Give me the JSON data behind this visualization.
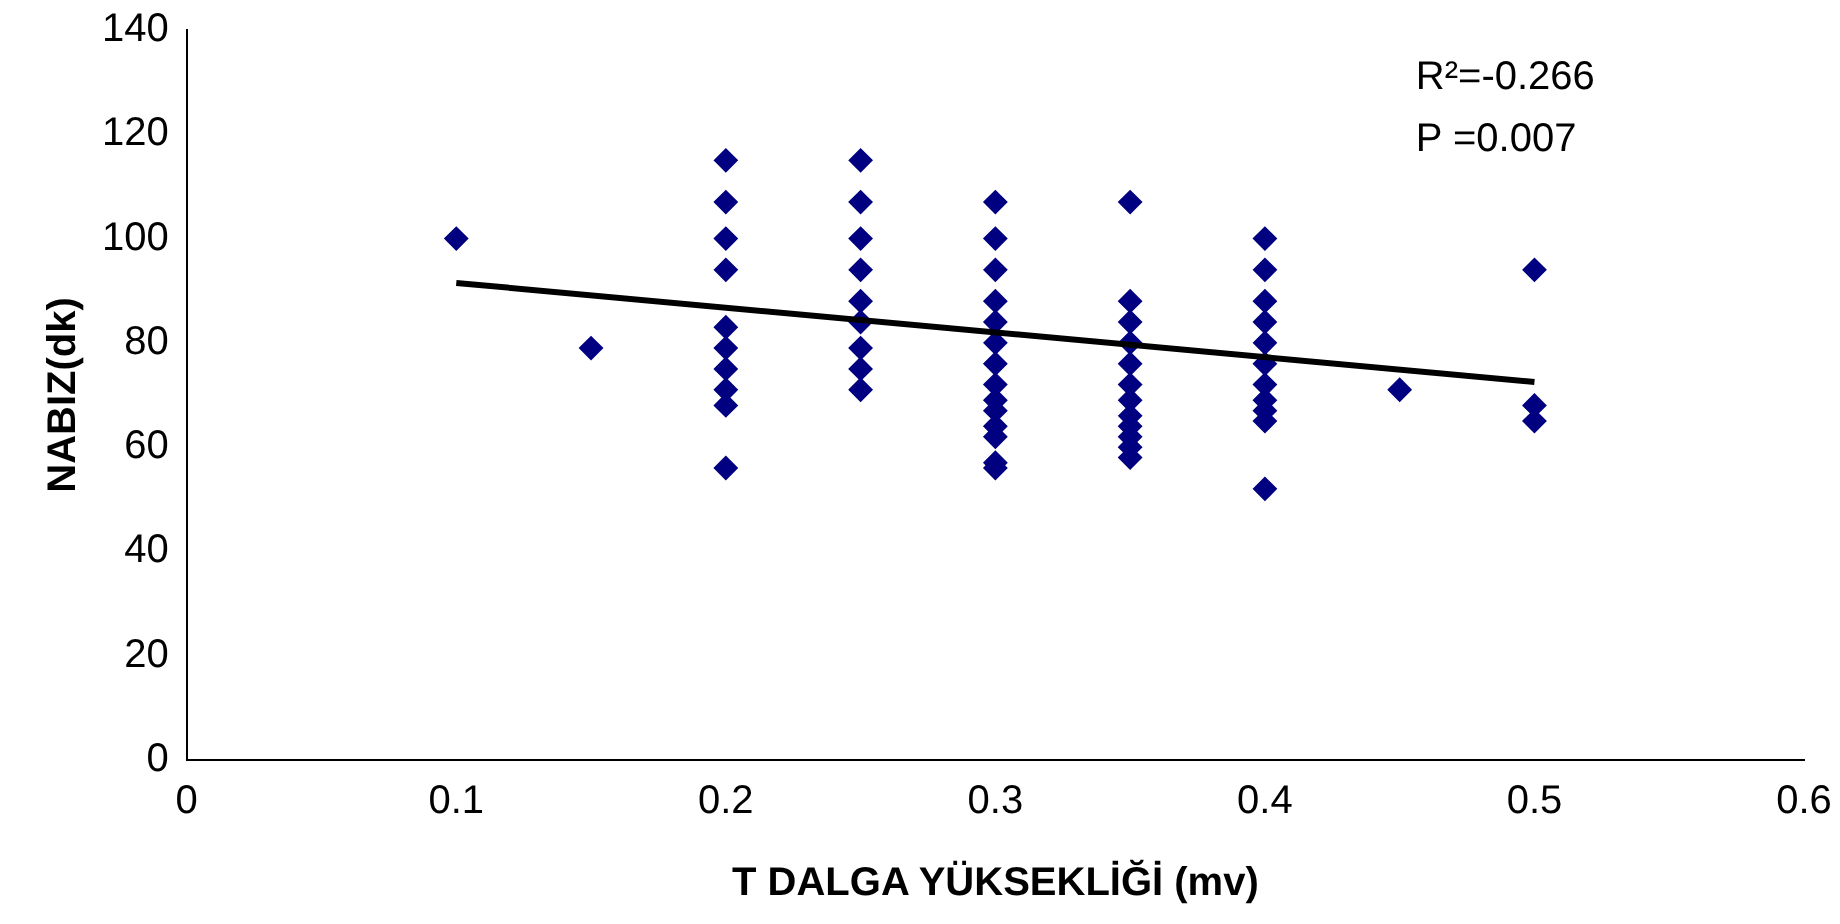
{
  "chart_data": {
    "type": "scatter",
    "xlabel": "T DALGA YÜKSEKLİĞİ (mv)",
    "ylabel": "NABIZ(dk)",
    "xlim": [
      0,
      0.6
    ],
    "xticks": [
      0,
      0.1,
      0.2,
      0.3,
      0.4,
      0.5,
      0.6
    ],
    "ylim": [
      0,
      140
    ],
    "yticks": [
      0,
      20,
      40,
      60,
      80,
      100,
      120,
      140
    ],
    "grid": false,
    "legend": false,
    "marker": "diamond",
    "annotations": [
      "R²=-0.266",
      "P =0.007"
    ],
    "series": [
      {
        "type": "scatter",
        "color": "#000080",
        "x": [
          0.1,
          0.15,
          0.2,
          0.2,
          0.2,
          0.2,
          0.2,
          0.2,
          0.2,
          0.2,
          0.2,
          0.2,
          0.25,
          0.25,
          0.25,
          0.25,
          0.25,
          0.25,
          0.25,
          0.25,
          0.25,
          0.3,
          0.3,
          0.3,
          0.3,
          0.3,
          0.3,
          0.3,
          0.3,
          0.3,
          0.3,
          0.3,
          0.3,
          0.3,
          0.3,
          0.35,
          0.35,
          0.35,
          0.35,
          0.35,
          0.35,
          0.35,
          0.35,
          0.35,
          0.35,
          0.35,
          0.35,
          0.4,
          0.4,
          0.4,
          0.4,
          0.4,
          0.4,
          0.4,
          0.4,
          0.4,
          0.4,
          0.4,
          0.45,
          0.5,
          0.5,
          0.5
        ],
        "values": [
          100,
          79,
          115,
          107,
          100,
          94,
          83,
          79,
          75,
          71,
          68,
          56,
          115,
          107,
          100,
          94,
          88,
          84,
          79,
          75,
          71,
          107,
          100,
          94,
          88,
          84,
          80,
          76,
          72,
          69,
          67,
          64,
          62,
          57,
          56,
          107,
          88,
          84,
          80,
          76,
          72,
          69,
          66,
          64,
          62,
          60,
          58,
          100,
          94,
          88,
          84,
          80,
          76,
          72,
          69,
          67,
          65,
          52,
          71,
          94,
          68,
          65
        ]
      },
      {
        "type": "line",
        "color": "#000000",
        "x": [
          0.1,
          0.5
        ],
        "values": [
          91.5,
          72.5
        ],
        "marker": "none"
      }
    ]
  }
}
